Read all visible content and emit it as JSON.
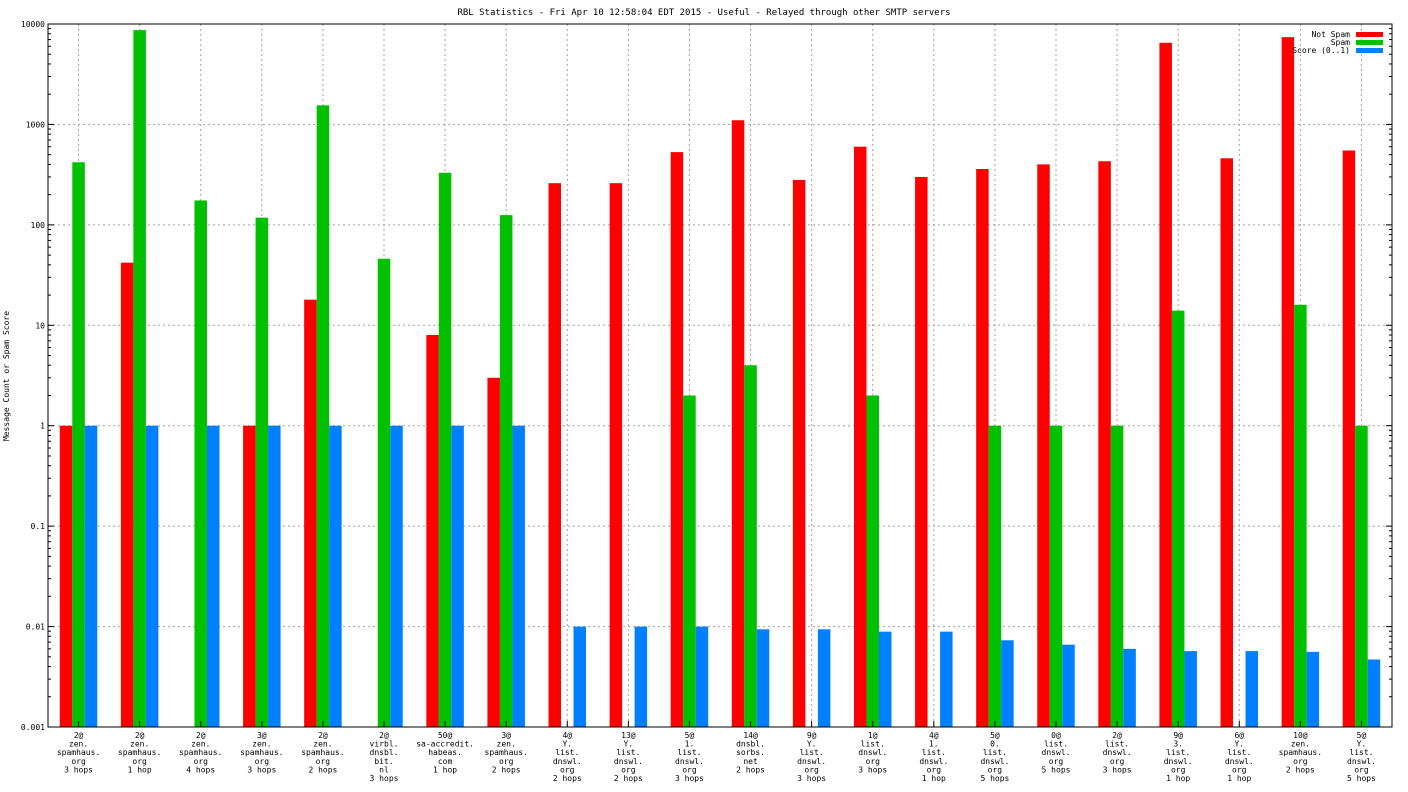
{
  "chart_data": {
    "type": "bar",
    "title": "RBL Statistics - Fri Apr 10 12:58:04 EDT 2015 - Useful - Relayed through other SMTP servers",
    "ylabel": "Message Count or Spam Score",
    "xlabel": "",
    "yscale": "log",
    "ylim": [
      0.001,
      10000
    ],
    "yticks": [
      "0.001",
      "0.01",
      "0.1",
      "1",
      "10",
      "100",
      "1000",
      "10000"
    ],
    "grid": true,
    "legend_position": "top-right",
    "categories": [
      [
        "2@",
        "zen.",
        "spamhaus.",
        "org",
        "3 hops"
      ],
      [
        "2@",
        "zen.",
        "spamhaus.",
        "org",
        "1 hop"
      ],
      [
        "2@",
        "zen.",
        "spamhaus.",
        "org",
        "4 hops"
      ],
      [
        "3@",
        "zen.",
        "spamhaus.",
        "org",
        "3 hops"
      ],
      [
        "2@",
        "zen.",
        "spamhaus.",
        "org",
        "2 hops"
      ],
      [
        "2@",
        "virbl.",
        "dnsbl.",
        "bit.",
        "nl",
        "3 hops"
      ],
      [
        "50@",
        "sa-accredit.",
        "habeas.",
        "com",
        "1 hop"
      ],
      [
        "3@",
        "zen.",
        "spamhaus.",
        "org",
        "2 hops"
      ],
      [
        "4@",
        "Y.",
        "list.",
        "dnswl.",
        "org",
        "2 hops"
      ],
      [
        "13@",
        "Y.",
        "list.",
        "dnswl.",
        "org",
        "2 hops"
      ],
      [
        "5@",
        "1.",
        "list.",
        "dnswl.",
        "org",
        "3 hops"
      ],
      [
        "14@",
        "dnsbl.",
        "sorbs.",
        "net",
        "2 hops"
      ],
      [
        "9@",
        "Y.",
        "list.",
        "dnswl.",
        "org",
        "3 hops"
      ],
      [
        "1@",
        "list.",
        "dnswl.",
        "org",
        "3 hops"
      ],
      [
        "4@",
        "1.",
        "list.",
        "dnswl.",
        "org",
        "1 hop"
      ],
      [
        "5@",
        "0.",
        "list.",
        "dnswl.",
        "org",
        "5 hops"
      ],
      [
        "0@",
        "list.",
        "dnswl.",
        "org",
        "5 hops"
      ],
      [
        "2@",
        "list.",
        "dnswl.",
        "org",
        "3 hops"
      ],
      [
        "9@",
        "3.",
        "list.",
        "dnswl.",
        "org",
        "1 hop"
      ],
      [
        "6@",
        "Y.",
        "list.",
        "dnswl.",
        "org",
        "1 hop"
      ],
      [
        "10@",
        "zen.",
        "spamhaus.",
        "org",
        "2 hops"
      ],
      [
        "5@",
        "Y.",
        "list.",
        "dnswl.",
        "org",
        "5 hops"
      ]
    ],
    "series": [
      {
        "name": "Not Spam",
        "color": "#ff0000",
        "values": [
          1,
          42,
          null,
          1,
          18,
          null,
          8,
          3,
          260,
          260,
          530,
          1100,
          280,
          600,
          300,
          360,
          400,
          430,
          6500,
          460,
          7400,
          550
        ]
      },
      {
        "name": "Spam",
        "color": "#00c000",
        "values": [
          420,
          8700,
          175,
          118,
          1550,
          46,
          330,
          125,
          null,
          null,
          2,
          4,
          null,
          2,
          null,
          1,
          1,
          1,
          14,
          null,
          16,
          1
        ]
      },
      {
        "name": "Score (0..1)",
        "color": "#0080ff",
        "values": [
          1,
          1,
          1,
          1,
          1,
          1,
          1,
          1,
          0.01,
          0.01,
          0.01,
          0.0094,
          0.0094,
          0.0089,
          0.0089,
          0.0073,
          0.0066,
          0.006,
          0.0057,
          0.0057,
          0.0056,
          0.0047
        ]
      }
    ]
  }
}
